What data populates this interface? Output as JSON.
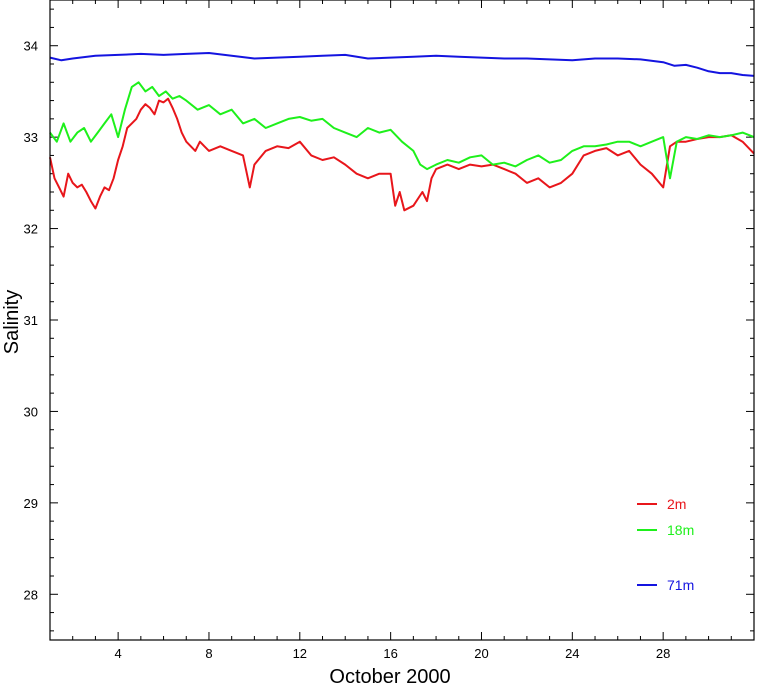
{
  "chart_data": {
    "type": "line",
    "xlabel": "October 2000",
    "ylabel": "Salinity",
    "xlim": [
      1,
      32
    ],
    "ylim": [
      27.5,
      34.5
    ],
    "x_ticks": [
      4,
      8,
      12,
      16,
      20,
      24,
      28
    ],
    "y_ticks": [
      28,
      29,
      30,
      31,
      32,
      33,
      34
    ],
    "grid": false,
    "legend_position": "bottom-right",
    "series": [
      {
        "name": "2m",
        "color": "#e8161b",
        "x": [
          1.0,
          1.2,
          1.4,
          1.6,
          1.8,
          2.0,
          2.2,
          2.4,
          2.6,
          2.8,
          3.0,
          3.2,
          3.4,
          3.6,
          3.8,
          4.0,
          4.2,
          4.4,
          4.6,
          4.8,
          5.0,
          5.2,
          5.4,
          5.6,
          5.8,
          6.0,
          6.2,
          6.4,
          6.6,
          6.8,
          7.0,
          7.2,
          7.4,
          7.6,
          7.8,
          8.0,
          8.5,
          9.0,
          9.5,
          9.8,
          10.0,
          10.5,
          11.0,
          11.5,
          12.0,
          12.5,
          13.0,
          13.5,
          14.0,
          14.5,
          15.0,
          15.5,
          16.0,
          16.2,
          16.4,
          16.6,
          17.0,
          17.4,
          17.6,
          17.8,
          18.0,
          18.5,
          19.0,
          19.5,
          20.0,
          20.5,
          21.0,
          21.5,
          22.0,
          22.5,
          23.0,
          23.5,
          24.0,
          24.5,
          25.0,
          25.5,
          26.0,
          26.5,
          27.0,
          27.5,
          28.0,
          28.3,
          28.6,
          29.0,
          29.5,
          30.0,
          30.5,
          31.0,
          31.5,
          32.0
        ],
        "values": [
          32.78,
          32.55,
          32.45,
          32.35,
          32.6,
          32.5,
          32.45,
          32.48,
          32.4,
          32.3,
          32.22,
          32.35,
          32.45,
          32.42,
          32.55,
          32.75,
          32.9,
          33.1,
          33.15,
          33.2,
          33.3,
          33.36,
          33.32,
          33.25,
          33.4,
          33.38,
          33.42,
          33.32,
          33.2,
          33.05,
          32.95,
          32.9,
          32.85,
          32.95,
          32.9,
          32.85,
          32.9,
          32.85,
          32.8,
          32.45,
          32.7,
          32.85,
          32.9,
          32.88,
          32.95,
          32.8,
          32.75,
          32.78,
          32.7,
          32.6,
          32.55,
          32.6,
          32.6,
          32.25,
          32.4,
          32.2,
          32.25,
          32.4,
          32.3,
          32.55,
          32.65,
          32.7,
          32.65,
          32.7,
          32.68,
          32.7,
          32.65,
          32.6,
          32.5,
          32.55,
          32.45,
          32.5,
          32.6,
          32.8,
          32.85,
          32.88,
          32.8,
          32.85,
          32.7,
          32.6,
          32.45,
          32.9,
          32.95,
          32.95,
          32.98,
          33.0,
          33.0,
          33.02,
          32.95,
          32.82
        ]
      },
      {
        "name": "18m",
        "color": "#1ef01b",
        "x": [
          1.0,
          1.3,
          1.6,
          1.9,
          2.2,
          2.5,
          2.8,
          3.1,
          3.4,
          3.7,
          4.0,
          4.3,
          4.6,
          4.9,
          5.2,
          5.5,
          5.8,
          6.1,
          6.4,
          6.7,
          7.0,
          7.5,
          8.0,
          8.5,
          9.0,
          9.5,
          10.0,
          10.5,
          11.0,
          11.5,
          12.0,
          12.5,
          13.0,
          13.5,
          14.0,
          14.5,
          15.0,
          15.5,
          16.0,
          16.5,
          17.0,
          17.3,
          17.6,
          18.0,
          18.5,
          19.0,
          19.5,
          20.0,
          20.5,
          21.0,
          21.5,
          22.0,
          22.5,
          23.0,
          23.5,
          24.0,
          24.5,
          25.0,
          25.5,
          26.0,
          26.5,
          27.0,
          27.5,
          28.0,
          28.3,
          28.6,
          29.0,
          29.5,
          30.0,
          30.5,
          31.0,
          31.5,
          32.0
        ],
        "values": [
          33.05,
          32.95,
          33.15,
          32.95,
          33.05,
          33.1,
          32.95,
          33.05,
          33.15,
          33.25,
          33.0,
          33.3,
          33.55,
          33.6,
          33.5,
          33.55,
          33.45,
          33.5,
          33.42,
          33.45,
          33.4,
          33.3,
          33.35,
          33.25,
          33.3,
          33.15,
          33.2,
          33.1,
          33.15,
          33.2,
          33.22,
          33.18,
          33.2,
          33.1,
          33.05,
          33.0,
          33.1,
          33.05,
          33.08,
          32.95,
          32.85,
          32.7,
          32.65,
          32.7,
          32.75,
          32.72,
          32.78,
          32.8,
          32.7,
          32.72,
          32.68,
          32.75,
          32.8,
          32.72,
          32.75,
          32.85,
          32.9,
          32.9,
          32.92,
          32.95,
          32.95,
          32.9,
          32.95,
          33.0,
          32.55,
          32.95,
          33.0,
          32.98,
          33.02,
          33.0,
          33.02,
          33.05,
          33.0
        ]
      },
      {
        "name": "71m",
        "color": "#1414e0",
        "x": [
          1.0,
          1.5,
          2.0,
          3.0,
          4.0,
          5.0,
          6.0,
          7.0,
          8.0,
          9.0,
          10.0,
          11.0,
          12.0,
          13.0,
          14.0,
          15.0,
          16.0,
          17.0,
          18.0,
          19.0,
          20.0,
          21.0,
          22.0,
          23.0,
          24.0,
          25.0,
          26.0,
          27.0,
          28.0,
          28.5,
          29.0,
          29.5,
          30.0,
          30.5,
          31.0,
          31.5,
          32.0
        ],
        "values": [
          33.87,
          33.84,
          33.86,
          33.89,
          33.9,
          33.91,
          33.9,
          33.91,
          33.92,
          33.89,
          33.86,
          33.87,
          33.88,
          33.89,
          33.9,
          33.86,
          33.87,
          33.88,
          33.89,
          33.88,
          33.87,
          33.86,
          33.86,
          33.85,
          33.84,
          33.86,
          33.86,
          33.85,
          33.82,
          33.78,
          33.79,
          33.76,
          33.72,
          33.7,
          33.7,
          33.68,
          33.67
        ]
      }
    ]
  }
}
